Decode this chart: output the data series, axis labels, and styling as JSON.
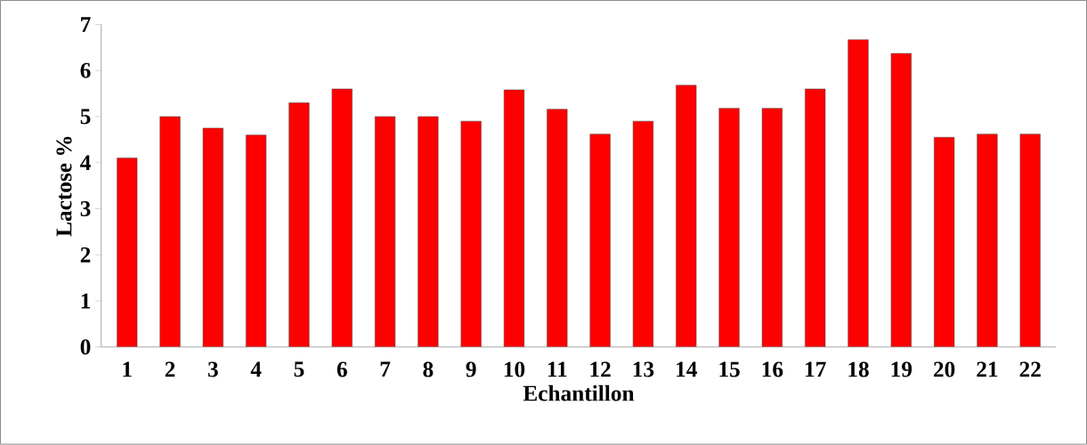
{
  "chart_data": {
    "type": "bar",
    "xlabel": "Echantillon",
    "ylabel": "Lactose %",
    "categories": [
      "1",
      "2",
      "3",
      "4",
      "5",
      "6",
      "7",
      "8",
      "9",
      "10",
      "11",
      "12",
      "13",
      "14",
      "15",
      "16",
      "17",
      "18",
      "19",
      "20",
      "21",
      "22"
    ],
    "values": [
      4.1,
      5.0,
      4.75,
      4.6,
      5.3,
      5.6,
      5.0,
      5.0,
      4.9,
      5.58,
      5.16,
      4.62,
      4.9,
      5.68,
      5.18,
      5.18,
      5.6,
      6.67,
      6.37,
      4.55,
      4.62,
      4.62
    ],
    "color": "#ff0000",
    "ylim": [
      0,
      7
    ],
    "yticks": [
      0,
      1,
      2,
      3,
      4,
      5,
      6,
      7
    ]
  }
}
